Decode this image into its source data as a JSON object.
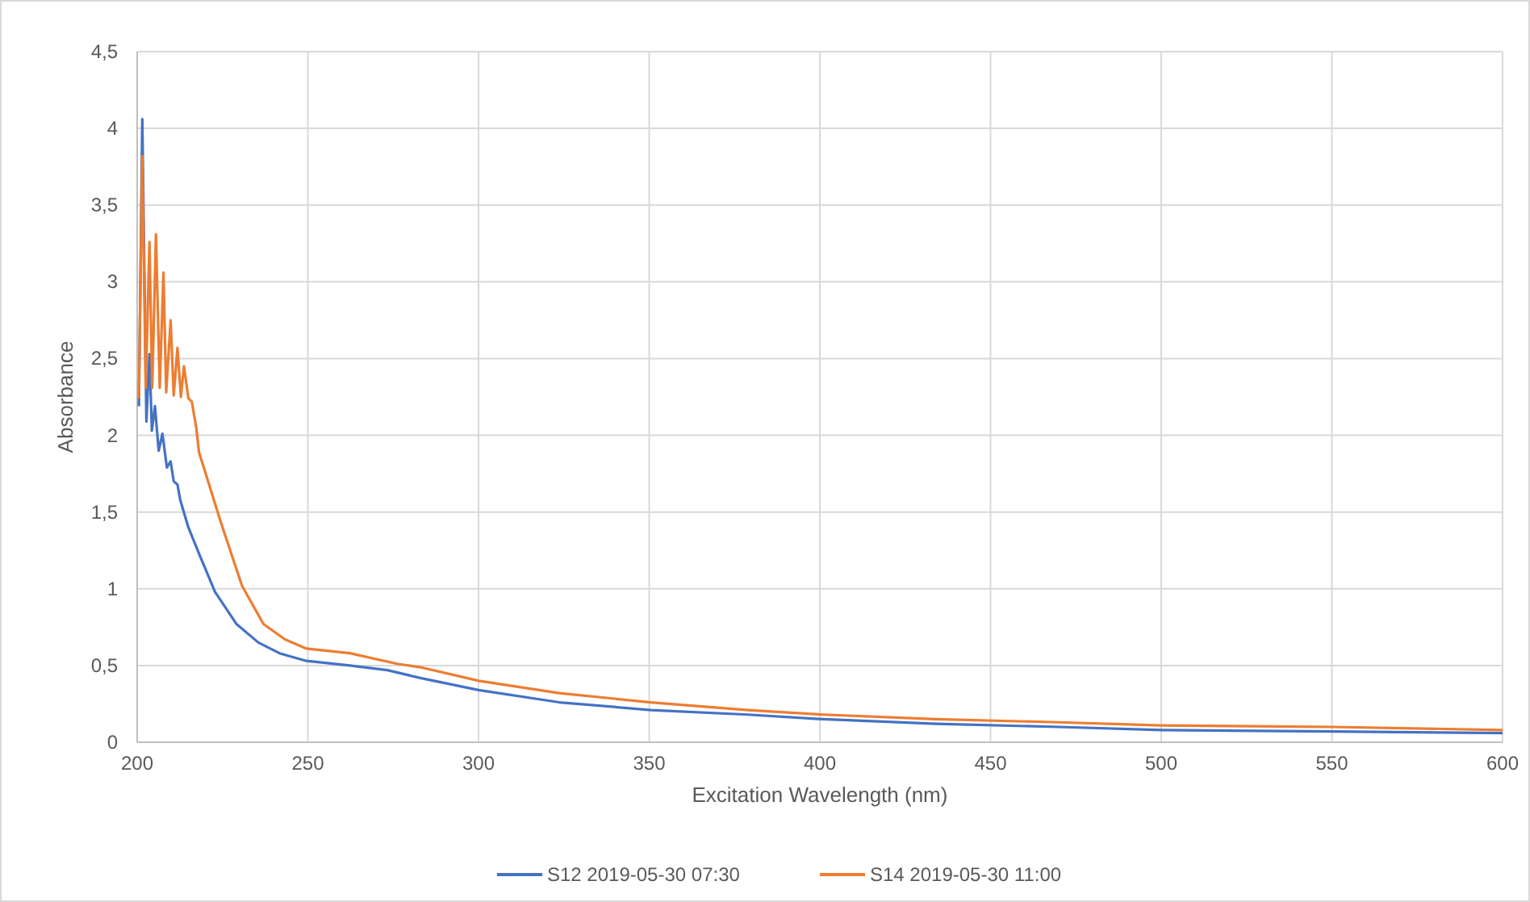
{
  "chart_data": {
    "type": "line",
    "xlabel": "Excitation Wavelength (nm)",
    "ylabel": "Absorbance",
    "xlim": [
      200,
      600
    ],
    "xticks": [
      200,
      250,
      300,
      350,
      400,
      450,
      500,
      550,
      600
    ],
    "ylim": [
      0,
      4.5
    ],
    "yticks": [
      0,
      {
        "value": 0.5,
        "label": "0,5"
      },
      1,
      {
        "value": 1.5,
        "label": "1,5"
      },
      2,
      {
        "value": 2.5,
        "label": "2,5"
      },
      3,
      {
        "value": 3.5,
        "label": "3,5"
      },
      4,
      {
        "value": 4.5,
        "label": "4,5"
      }
    ],
    "grid": true,
    "legend": "bottom",
    "line_style": "solid",
    "marker": "none",
    "series": [
      {
        "name": "S12 2019-05-30 07:30",
        "color": "#4472c4",
        "x": [
          200.5,
          201.5,
          202.7,
          203.6,
          204.3,
          205.2,
          206.3,
          207.4,
          208.7,
          209.8,
          210.7,
          211.8,
          212.6,
          215,
          218.1,
          222.8,
          229.1,
          235.5,
          241.7,
          249.6,
          262.3,
          273.3,
          282.7,
          300.1,
          323.7,
          350.5,
          378.9,
          401,
          434,
          470,
          500,
          550,
          600
        ],
        "values": [
          2.19,
          4.06,
          2.09,
          2.53,
          2.03,
          2.19,
          1.9,
          2.01,
          1.79,
          1.83,
          1.7,
          1.68,
          1.58,
          1.4,
          1.23,
          0.98,
          0.77,
          0.65,
          0.58,
          0.53,
          0.5,
          0.47,
          0.42,
          0.34,
          0.26,
          0.21,
          0.18,
          0.15,
          0.12,
          0.1,
          0.08,
          0.07,
          0.06
        ]
      },
      {
        "name": "S14 2019-05-30 11:00",
        "color": "#ed7d31",
        "x": [
          200.5,
          201.5,
          202.5,
          203.6,
          204.4,
          205.5,
          206.6,
          207.7,
          208.5,
          209.8,
          210.7,
          211.8,
          212.8,
          213.7,
          215,
          216,
          217.3,
          218.1,
          220.5,
          224.4,
          230.7,
          237,
          243.3,
          249.6,
          262.3,
          276.4,
          282.7,
          300.1,
          323.7,
          350.5,
          378.9,
          401,
          434,
          470,
          500,
          550,
          600
        ],
        "values": [
          2.24,
          3.82,
          2.31,
          3.26,
          2.31,
          3.31,
          2.31,
          3.06,
          2.28,
          2.75,
          2.26,
          2.57,
          2.25,
          2.45,
          2.24,
          2.22,
          2.05,
          1.89,
          1.72,
          1.44,
          1.02,
          0.77,
          0.67,
          0.61,
          0.58,
          0.51,
          0.49,
          0.4,
          0.32,
          0.26,
          0.21,
          0.18,
          0.15,
          0.13,
          0.11,
          0.1,
          0.08
        ]
      }
    ]
  }
}
